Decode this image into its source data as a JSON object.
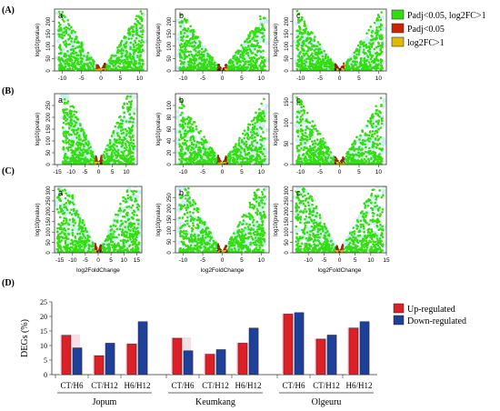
{
  "panel_labels": [
    "(A)",
    "(B)",
    "(C)",
    "(D)"
  ],
  "subplot_letters": [
    "a",
    "b",
    "c"
  ],
  "volcano_axis": {
    "ylabel": "log10(pvalue)",
    "xlabel": "log2FoldChange"
  },
  "volcano_legend": {
    "items": [
      {
        "label": "Padj<0.05, log2FC>1",
        "color": "#33dd11"
      },
      {
        "label": "Padj<0.05",
        "color": "#cc2200"
      },
      {
        "label": "log2FC>1",
        "color": "#ddbb00"
      }
    ]
  },
  "chart_data": [
    {
      "type": "scatter",
      "id": "A-a",
      "xlim": [
        -12,
        12
      ],
      "xticks": [
        -10,
        -5,
        0,
        5,
        10
      ],
      "ylim": [
        0,
        250
      ],
      "yticks": [
        0,
        50,
        100,
        150,
        200
      ],
      "ylabel": "log10(pvalue)"
    },
    {
      "type": "scatter",
      "id": "A-b",
      "xlim": [
        -12,
        12
      ],
      "xticks": [
        -10,
        -5,
        0,
        5,
        10
      ],
      "ylim": [
        0,
        250
      ],
      "yticks": [
        0,
        50,
        100,
        150,
        200
      ],
      "ylabel": "log10(pvalue)"
    },
    {
      "type": "scatter",
      "id": "A-c",
      "xlim": [
        -12,
        12
      ],
      "xticks": [
        -10,
        -5,
        0,
        5,
        10
      ],
      "ylim": [
        0,
        250
      ],
      "yticks": [
        0,
        50,
        100,
        150,
        200
      ],
      "ylabel": "log10(pvalue)"
    },
    {
      "type": "scatter",
      "id": "B-a",
      "xlim": [
        -16,
        14
      ],
      "xticks": [
        -15,
        -10,
        -5,
        0,
        5,
        10
      ],
      "ylim": [
        0,
        300
      ],
      "yticks": [
        0,
        50,
        100,
        150,
        200,
        250
      ],
      "ylabel": "log10(pvalue)"
    },
    {
      "type": "scatter",
      "id": "B-b",
      "xlim": [
        -12,
        12
      ],
      "xticks": [
        -10,
        -5,
        0,
        5,
        10
      ],
      "ylim": [
        0,
        120
      ],
      "yticks": [
        0,
        20,
        40,
        60,
        80,
        100
      ],
      "ylabel": "log10(pvalue)"
    },
    {
      "type": "scatter",
      "id": "B-c",
      "xlim": [
        -12,
        12
      ],
      "xticks": [
        -10,
        -5,
        0,
        5,
        10
      ],
      "ylim": [
        0,
        170
      ],
      "yticks": [
        0,
        50,
        100,
        150
      ],
      "ylabel": "log10(pvalue)"
    },
    {
      "type": "scatter",
      "id": "C-a",
      "xlim": [
        -17,
        17
      ],
      "xticks": [
        -15,
        -10,
        -5,
        0,
        5,
        10,
        15
      ],
      "ylim": [
        0,
        320
      ],
      "yticks": [
        0,
        50,
        100,
        150,
        200,
        250,
        300
      ],
      "ylabel": "log10(pvalue)",
      "xlabel": "log2FoldChange"
    },
    {
      "type": "scatter",
      "id": "C-b",
      "xlim": [
        -12,
        12
      ],
      "xticks": [
        -10,
        -5,
        0,
        5,
        10
      ],
      "ylim": [
        0,
        300
      ],
      "yticks": [
        0,
        50,
        100,
        150,
        200,
        250
      ],
      "ylabel": "log10(pvalue)",
      "xlabel": "log2FoldChange"
    },
    {
      "type": "scatter",
      "id": "C-c",
      "xlim": [
        -15,
        15
      ],
      "xticks": [
        -10,
        -5,
        0,
        5,
        10,
        15
      ],
      "ylim": [
        0,
        320
      ],
      "yticks": [
        0,
        50,
        100,
        150,
        200,
        250,
        300
      ],
      "ylabel": "log10(pvalue)",
      "xlabel": "log2FoldChange"
    },
    {
      "type": "bar",
      "id": "D",
      "categories": [
        "CT/H6",
        "CT/H12",
        "H6/H12",
        "CT/H6",
        "CT/H12",
        "H6/H12",
        "CT/H6",
        "CT/H12",
        "H6/H12"
      ],
      "groups": [
        {
          "name": "Jopum",
          "span": [
            0,
            2
          ]
        },
        {
          "name": "Keumkang",
          "span": [
            3,
            5
          ]
        },
        {
          "name": "Olgeuru",
          "span": [
            6,
            8
          ]
        }
      ],
      "series": [
        {
          "name": "Up-regulated",
          "color": "#dd1f26",
          "values": [
            13.5,
            6.5,
            10.5,
            12.5,
            7,
            10.8,
            20.8,
            12.2,
            16
          ]
        },
        {
          "name": "Down-regulated",
          "color": "#1e3f9a",
          "values": [
            9.2,
            10.8,
            18.2,
            8.2,
            8.6,
            16,
            21.3,
            13.6,
            18.2
          ]
        }
      ],
      "ylabel": "DEGs (%)",
      "ylim": [
        0,
        25
      ],
      "yticks": [
        0,
        5,
        10,
        15,
        20,
        25
      ],
      "legend": "top-right",
      "grid": false
    }
  ]
}
